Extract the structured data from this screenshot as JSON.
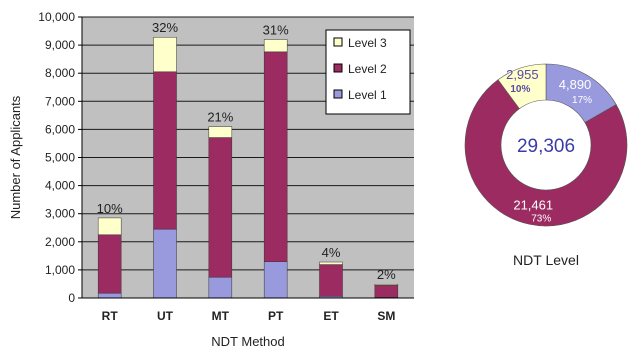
{
  "chart_data": [
    {
      "type": "bar",
      "stacked": true,
      "title": "",
      "xlabel": "NDT Method",
      "ylabel": "Number of Applicants",
      "ylim": [
        0,
        10000
      ],
      "yticks": [
        "0",
        "1,000",
        "2,000",
        "3,000",
        "4,000",
        "5,000",
        "6,000",
        "7,000",
        "8,000",
        "9,000",
        "10,000"
      ],
      "grid": true,
      "legend_position": "top-right",
      "categories": [
        "RT",
        "UT",
        "MT",
        "PT",
        "ET",
        "SM"
      ],
      "series": [
        {
          "name": "Level 1",
          "color": "#9999dd",
          "values": [
            170,
            2450,
            740,
            1290,
            60,
            20
          ]
        },
        {
          "name": "Level 2",
          "color": "#9c2b61",
          "values": [
            2080,
            5600,
            4970,
            7470,
            1130,
            430
          ]
        },
        {
          "name": "Level 3",
          "color": "#ffffcc",
          "values": [
            600,
            1230,
            390,
            440,
            90,
            40
          ]
        }
      ],
      "legend_order": [
        "Level 3",
        "Level 2",
        "Level 1"
      ],
      "bar_labels": [
        "10%",
        "32%",
        "21%",
        "31%",
        "4%",
        "2%"
      ]
    },
    {
      "type": "pie",
      "donut": true,
      "title": "NDT Level",
      "center_label": "29,306",
      "slices": [
        {
          "name": "Level 1",
          "value": 4890,
          "value_label": "4,890",
          "percent_label": "17%",
          "color": "#9999dd"
        },
        {
          "name": "Level 2",
          "value": 21461,
          "value_label": "21,461",
          "percent_label": "73%",
          "color": "#9c2b61"
        },
        {
          "name": "Level 3",
          "value": 2955,
          "value_label": "2,955",
          "percent_label": "10%",
          "color": "#ffffcc"
        }
      ]
    }
  ]
}
